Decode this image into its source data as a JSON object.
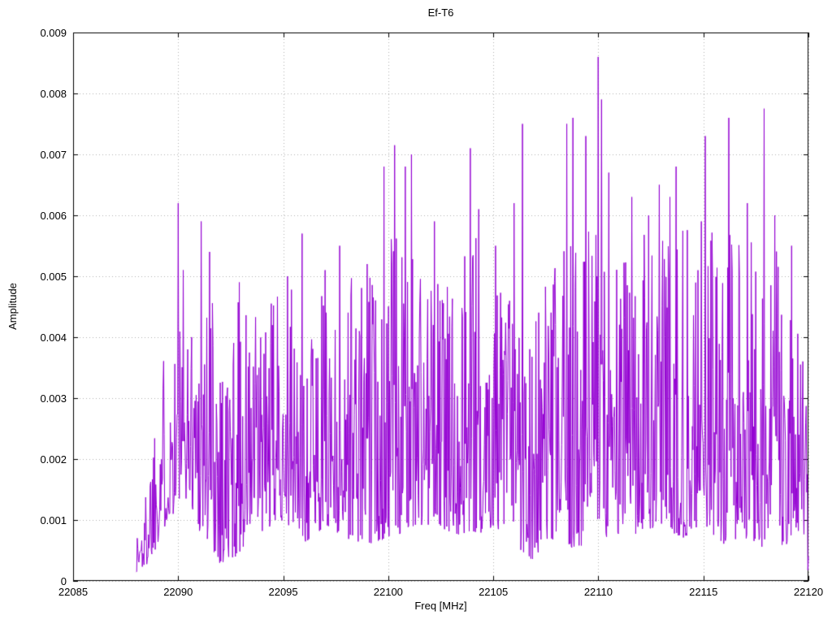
{
  "chart_data": {
    "type": "line",
    "title": "Ef-T6",
    "xlabel": "Freq [MHz]",
    "ylabel": "Amplitude",
    "xlim": [
      22085,
      22120
    ],
    "ylim": [
      0,
      0.009
    ],
    "xticks": [
      22085,
      22090,
      22095,
      22100,
      22105,
      22110,
      22115,
      22120
    ],
    "xtick_labels": [
      "22085",
      "22090",
      "22095",
      "22100",
      "22105",
      "22110",
      "22115",
      "22120"
    ],
    "yticks": [
      0,
      0.001,
      0.002,
      0.003,
      0.004,
      0.005,
      0.006,
      0.007,
      0.008,
      0.009
    ],
    "ytick_labels": [
      "0",
      "0.001",
      "0.002",
      "0.003",
      "0.004",
      "0.005",
      "0.006",
      "0.007",
      "0.008",
      "0.009"
    ],
    "grid": true,
    "grid_style": "dotted",
    "grid_color": "#b0b0b0",
    "border_color": "#000000",
    "background": "#ffffff",
    "line_color": "#9400d3",
    "legend": null,
    "series": [
      {
        "name": "Ef-T6",
        "description": "Dense noise-like amplitude spectrum from 22088 to 22120 MHz, typical values 0.001-0.005 with sharp spikes; maximum spike 0.0086 at 22110 MHz.",
        "synthesis": {
          "x_start": 22088.0,
          "x_end": 22120.0,
          "n_points": 1200,
          "seed": 1337,
          "power": 1.7,
          "envelope": [
            [
              22088.0,
              0.0001,
              0.0009
            ],
            [
              22088.4,
              0.0002,
              0.0013
            ],
            [
              22088.8,
              0.0004,
              0.003
            ],
            [
              22089.2,
              0.0008,
              0.0039
            ],
            [
              22089.6,
              0.001,
              0.0036
            ],
            [
              22090.0,
              0.0012,
              0.005
            ],
            [
              22090.5,
              0.0014,
              0.0042
            ],
            [
              22091.0,
              0.0008,
              0.005
            ],
            [
              22091.7,
              0.0004,
              0.0054
            ],
            [
              22092.2,
              0.0002,
              0.004
            ],
            [
              22093.0,
              0.0005,
              0.0048
            ],
            [
              22094.0,
              0.0008,
              0.0043
            ],
            [
              22095.0,
              0.001,
              0.005
            ],
            [
              22096.0,
              0.0006,
              0.0045
            ],
            [
              22097.0,
              0.0009,
              0.0048
            ],
            [
              22098.0,
              0.0007,
              0.0055
            ],
            [
              22099.0,
              0.0006,
              0.005
            ],
            [
              22100.0,
              0.0007,
              0.0058
            ],
            [
              22101.0,
              0.0008,
              0.006
            ],
            [
              22102.0,
              0.0009,
              0.0052
            ],
            [
              22103.0,
              0.0008,
              0.005
            ],
            [
              22104.0,
              0.0007,
              0.006
            ],
            [
              22105.0,
              0.0009,
              0.0052
            ],
            [
              22106.0,
              0.0006,
              0.0052
            ],
            [
              22107.0,
              0.0003,
              0.0046
            ],
            [
              22108.0,
              0.0006,
              0.0052
            ],
            [
              22109.0,
              0.0005,
              0.0058
            ],
            [
              22110.0,
              0.0008,
              0.0062
            ],
            [
              22111.0,
              0.0006,
              0.0055
            ],
            [
              22112.0,
              0.0008,
              0.0058
            ],
            [
              22113.0,
              0.0009,
              0.006
            ],
            [
              22114.0,
              0.0007,
              0.0058
            ],
            [
              22115.0,
              0.0009,
              0.006
            ],
            [
              22116.0,
              0.0006,
              0.0058
            ],
            [
              22117.0,
              0.0007,
              0.0055
            ],
            [
              22118.0,
              0.0005,
              0.0058
            ],
            [
              22119.0,
              0.0006,
              0.005
            ],
            [
              22119.6,
              0.0008,
              0.004
            ],
            [
              22120.0,
              0.0003,
              0.003
            ]
          ],
          "peaks": [
            [
              22090.0,
              0.0062
            ],
            [
              22090.25,
              0.0051
            ],
            [
              22091.1,
              0.0059
            ],
            [
              22091.5,
              0.0054
            ],
            [
              22092.9,
              0.0049
            ],
            [
              22095.2,
              0.005
            ],
            [
              22095.9,
              0.0057
            ],
            [
              22097.0,
              0.0051
            ],
            [
              22097.7,
              0.0055
            ],
            [
              22099.0,
              0.0052
            ],
            [
              22099.8,
              0.0068
            ],
            [
              22100.3,
              0.00715
            ],
            [
              22100.8,
              0.0068
            ],
            [
              22101.1,
              0.007
            ],
            [
              22102.2,
              0.0059
            ],
            [
              22103.9,
              0.0071
            ],
            [
              22104.3,
              0.0061
            ],
            [
              22105.1,
              0.0055
            ],
            [
              22106.0,
              0.0062
            ],
            [
              22106.4,
              0.0075
            ],
            [
              22108.5,
              0.0075
            ],
            [
              22108.8,
              0.0076
            ],
            [
              22109.4,
              0.0073
            ],
            [
              22110.0,
              0.0086
            ],
            [
              22110.15,
              0.0079
            ],
            [
              22110.5,
              0.0067
            ],
            [
              22111.6,
              0.0063
            ],
            [
              22112.4,
              0.006
            ],
            [
              22112.9,
              0.0065
            ],
            [
              22113.4,
              0.0063
            ],
            [
              22113.7,
              0.0068
            ],
            [
              22114.9,
              0.0059
            ],
            [
              22115.1,
              0.0073
            ],
            [
              22116.2,
              0.0076
            ],
            [
              22117.1,
              0.0062
            ],
            [
              22117.9,
              0.00775
            ],
            [
              22118.4,
              0.006
            ],
            [
              22119.2,
              0.0055
            ],
            [
              22120.0,
              0.0004
            ]
          ]
        }
      }
    ]
  }
}
